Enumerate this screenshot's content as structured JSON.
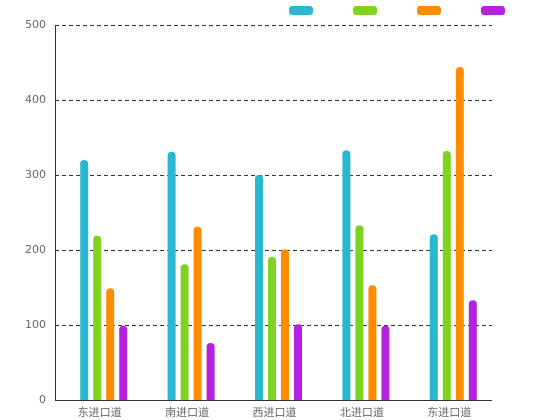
{
  "chart_data": {
    "type": "bar",
    "categories": [
      "东进口道",
      "南进口道",
      "西进口道",
      "北进口道",
      "东进口道"
    ],
    "series": [
      {
        "color": "#29b8d0",
        "values": [
          320,
          331,
          300,
          333,
          221
        ]
      },
      {
        "color": "#7ed321",
        "values": [
          219,
          181,
          191,
          233,
          332
        ]
      },
      {
        "color": "#ff8c00",
        "values": [
          149,
          231,
          201,
          153,
          444
        ]
      },
      {
        "color": "#b620e0",
        "values": [
          99,
          76,
          101,
          99,
          133
        ]
      }
    ],
    "ylim": [
      0,
      500
    ],
    "yticks": [
      0,
      100,
      200,
      300,
      400,
      500
    ],
    "grid": true
  }
}
